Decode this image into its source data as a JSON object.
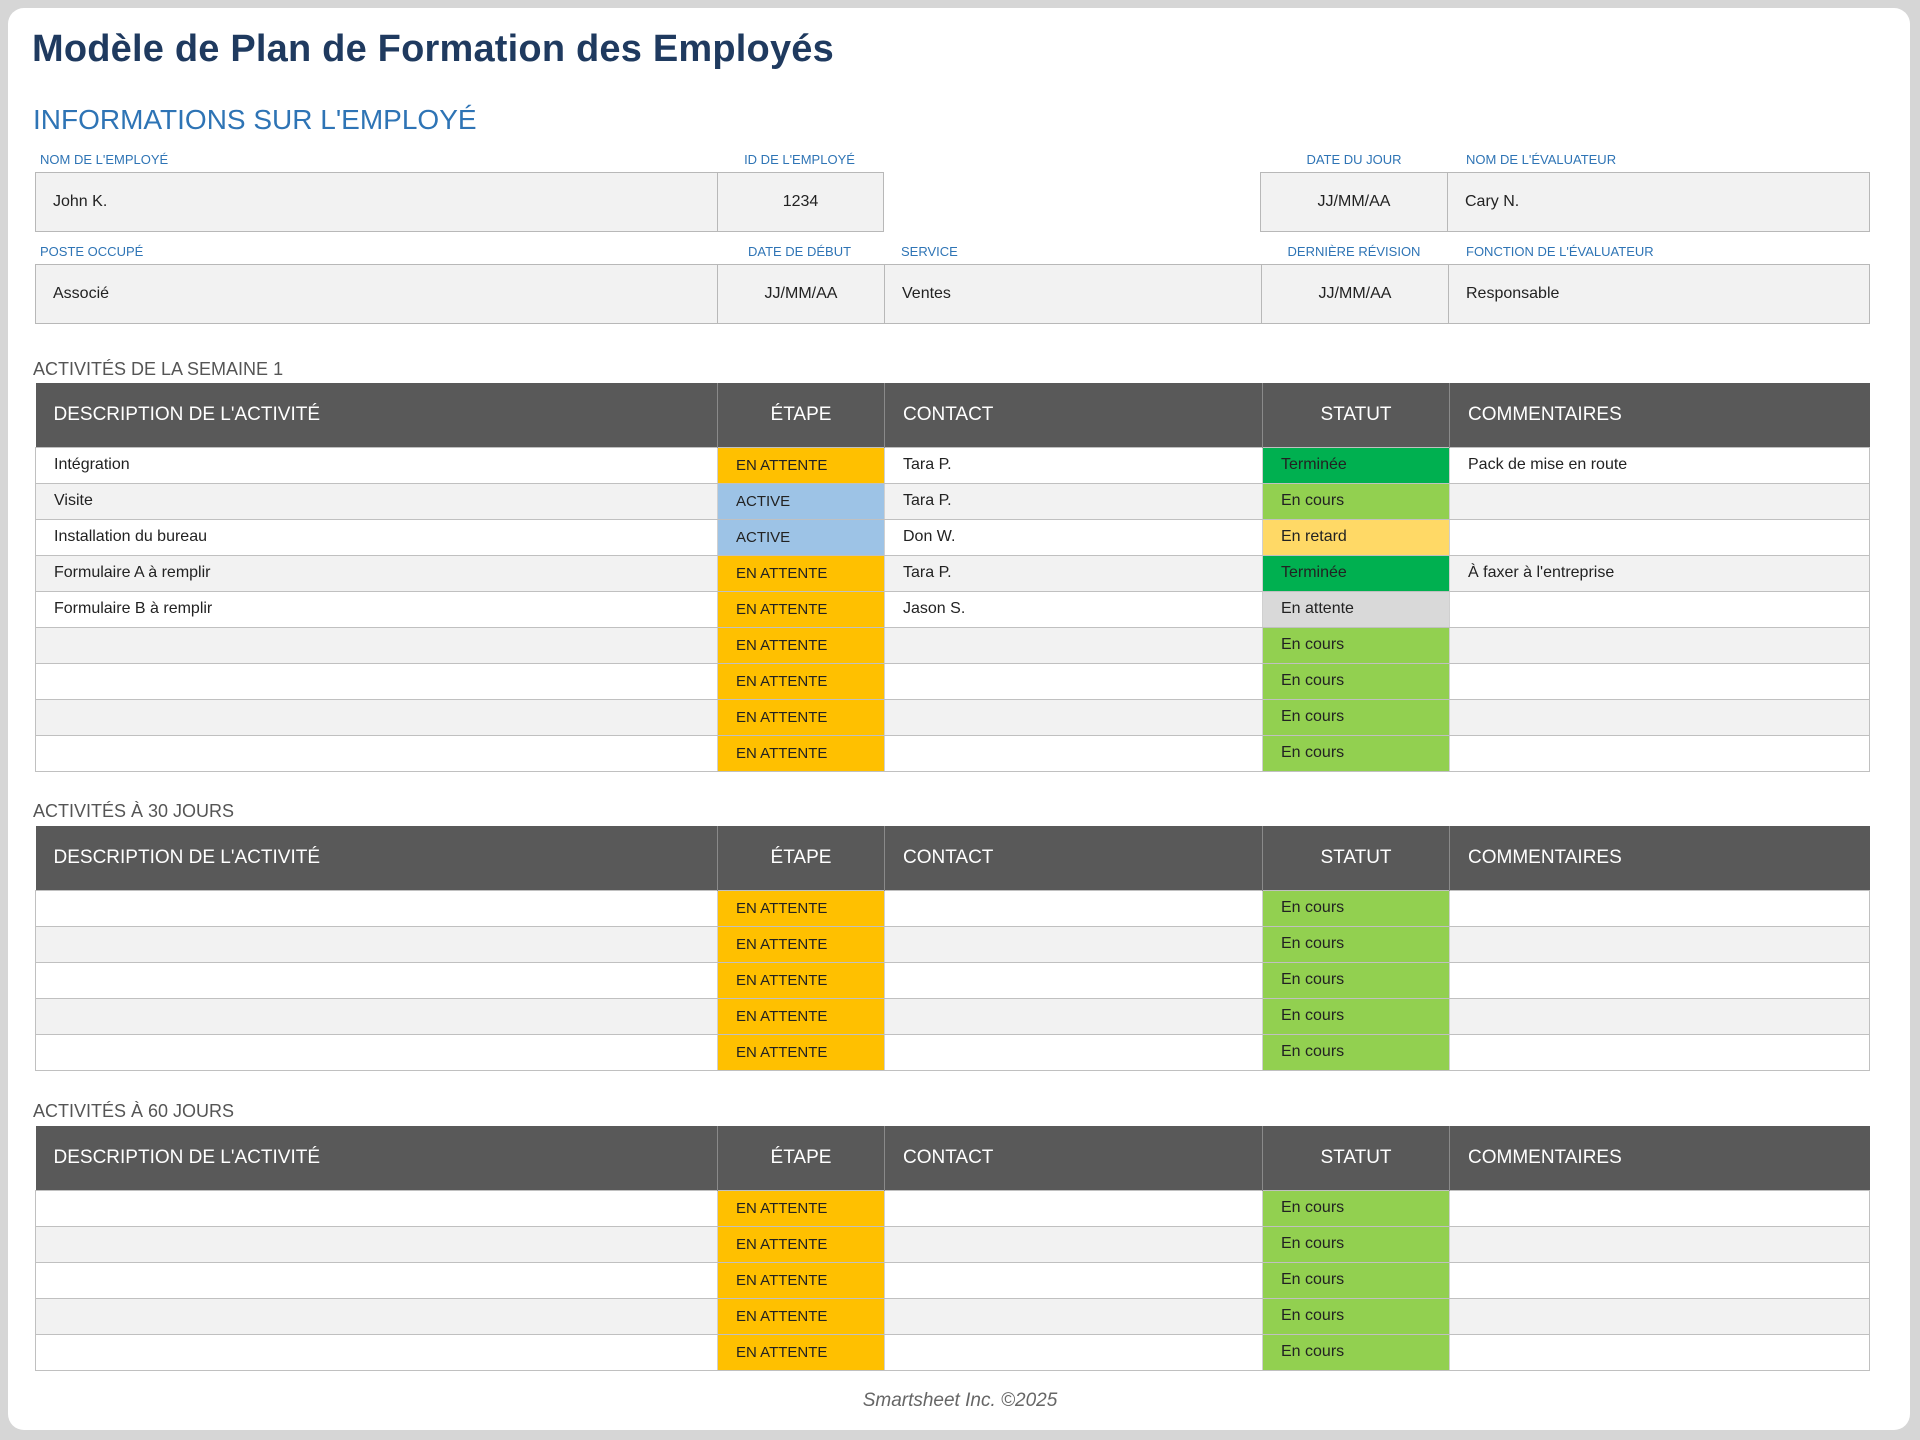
{
  "title": "Modèle de Plan de Formation des Employés",
  "employee_section": {
    "heading": "INFORMATIONS SUR L'EMPLOYÉ",
    "labels": {
      "name": "NOM DE L'EMPLOYÉ",
      "id": "ID DE L'EMPLOYÉ",
      "today": "DATE DU JOUR",
      "reviewer_name": "NOM DE L'ÉVALUATEUR",
      "position": "POSTE OCCUPÉ",
      "start_date": "DATE DE DÉBUT",
      "department": "SERVICE",
      "last_review": "DERNIÈRE RÉVISION",
      "reviewer_role": "FONCTION DE L'ÉVALUATEUR"
    },
    "values": {
      "name": "John K.",
      "id": "1234",
      "today": "JJ/MM/AA",
      "reviewer_name": "Cary N.",
      "position": "Associé",
      "start_date": "JJ/MM/AA",
      "department": "Ventes",
      "last_review": "JJ/MM/AA",
      "reviewer_role": "Responsable"
    }
  },
  "columns": {
    "description": "DESCRIPTION DE L'ACTIVITÉ",
    "stage": "ÉTAPE",
    "contact": "CONTACT",
    "status": "STATUT",
    "comments": "COMMENTAIRES"
  },
  "status_colors": {
    "EN ATTENTE": "#ffc000",
    "ACTIVE": "#9dc3e6",
    "Terminée": "#00b050",
    "En cours": "#92d050",
    "En retard": "#ffd966",
    "En attente": "#d9d9d9"
  },
  "groups": [
    {
      "label": "ACTIVITÉS DE LA SEMAINE 1",
      "rows": [
        {
          "description": "Intégration",
          "stage": "EN ATTENTE",
          "contact": "Tara P.",
          "status": "Terminée",
          "comments": "Pack de mise en route"
        },
        {
          "description": "Visite",
          "stage": "ACTIVE",
          "contact": "Tara P.",
          "status": "En cours",
          "comments": ""
        },
        {
          "description": "Installation du bureau",
          "stage": "ACTIVE",
          "contact": "Don W.",
          "status": "En retard",
          "comments": ""
        },
        {
          "description": "Formulaire A à remplir",
          "stage": "EN ATTENTE",
          "contact": "Tara P.",
          "status": "Terminée",
          "comments": "À faxer à l'entreprise"
        },
        {
          "description": "Formulaire B à remplir",
          "stage": "EN ATTENTE",
          "contact": "Jason S.",
          "status": "En attente",
          "comments": ""
        },
        {
          "description": "",
          "stage": "EN ATTENTE",
          "contact": "",
          "status": "En cours",
          "comments": ""
        },
        {
          "description": "",
          "stage": "EN ATTENTE",
          "contact": "",
          "status": "En cours",
          "comments": ""
        },
        {
          "description": "",
          "stage": "EN ATTENTE",
          "contact": "",
          "status": "En cours",
          "comments": ""
        },
        {
          "description": "",
          "stage": "EN ATTENTE",
          "contact": "",
          "status": "En cours",
          "comments": ""
        }
      ]
    },
    {
      "label": "ACTIVITÉS À 30 JOURS",
      "rows": [
        {
          "description": "",
          "stage": "EN ATTENTE",
          "contact": "",
          "status": "En cours",
          "comments": ""
        },
        {
          "description": "",
          "stage": "EN ATTENTE",
          "contact": "",
          "status": "En cours",
          "comments": ""
        },
        {
          "description": "",
          "stage": "EN ATTENTE",
          "contact": "",
          "status": "En cours",
          "comments": ""
        },
        {
          "description": "",
          "stage": "EN ATTENTE",
          "contact": "",
          "status": "En cours",
          "comments": ""
        },
        {
          "description": "",
          "stage": "EN ATTENTE",
          "contact": "",
          "status": "En cours",
          "comments": ""
        }
      ]
    },
    {
      "label": "ACTIVITÉS À 60 JOURS",
      "rows": [
        {
          "description": "",
          "stage": "EN ATTENTE",
          "contact": "",
          "status": "En cours",
          "comments": ""
        },
        {
          "description": "",
          "stage": "EN ATTENTE",
          "contact": "",
          "status": "En cours",
          "comments": ""
        },
        {
          "description": "",
          "stage": "EN ATTENTE",
          "contact": "",
          "status": "En cours",
          "comments": ""
        },
        {
          "description": "",
          "stage": "EN ATTENTE",
          "contact": "",
          "status": "En cours",
          "comments": ""
        },
        {
          "description": "",
          "stage": "EN ATTENTE",
          "contact": "",
          "status": "En cours",
          "comments": ""
        }
      ]
    }
  ],
  "footer": "Smartsheet Inc. ©2025"
}
